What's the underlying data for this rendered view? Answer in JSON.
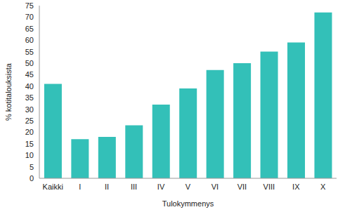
{
  "chart_data": {
    "type": "bar",
    "x_label": "Tulokymmenys",
    "y_label": "% kotitalouksista",
    "categories": [
      "Kaikki",
      "I",
      "II",
      "III",
      "IV",
      "V",
      "VI",
      "VII",
      "VIII",
      "IX",
      "X"
    ],
    "values": [
      41,
      17,
      18,
      23,
      32,
      39,
      47,
      50,
      55,
      59,
      72
    ],
    "color": "#33c0b8",
    "ylim": [
      0,
      75
    ],
    "yticks": [
      0,
      5,
      10,
      15,
      20,
      25,
      30,
      35,
      40,
      45,
      50,
      55,
      60,
      65,
      70,
      75
    ],
    "grid": false
  }
}
